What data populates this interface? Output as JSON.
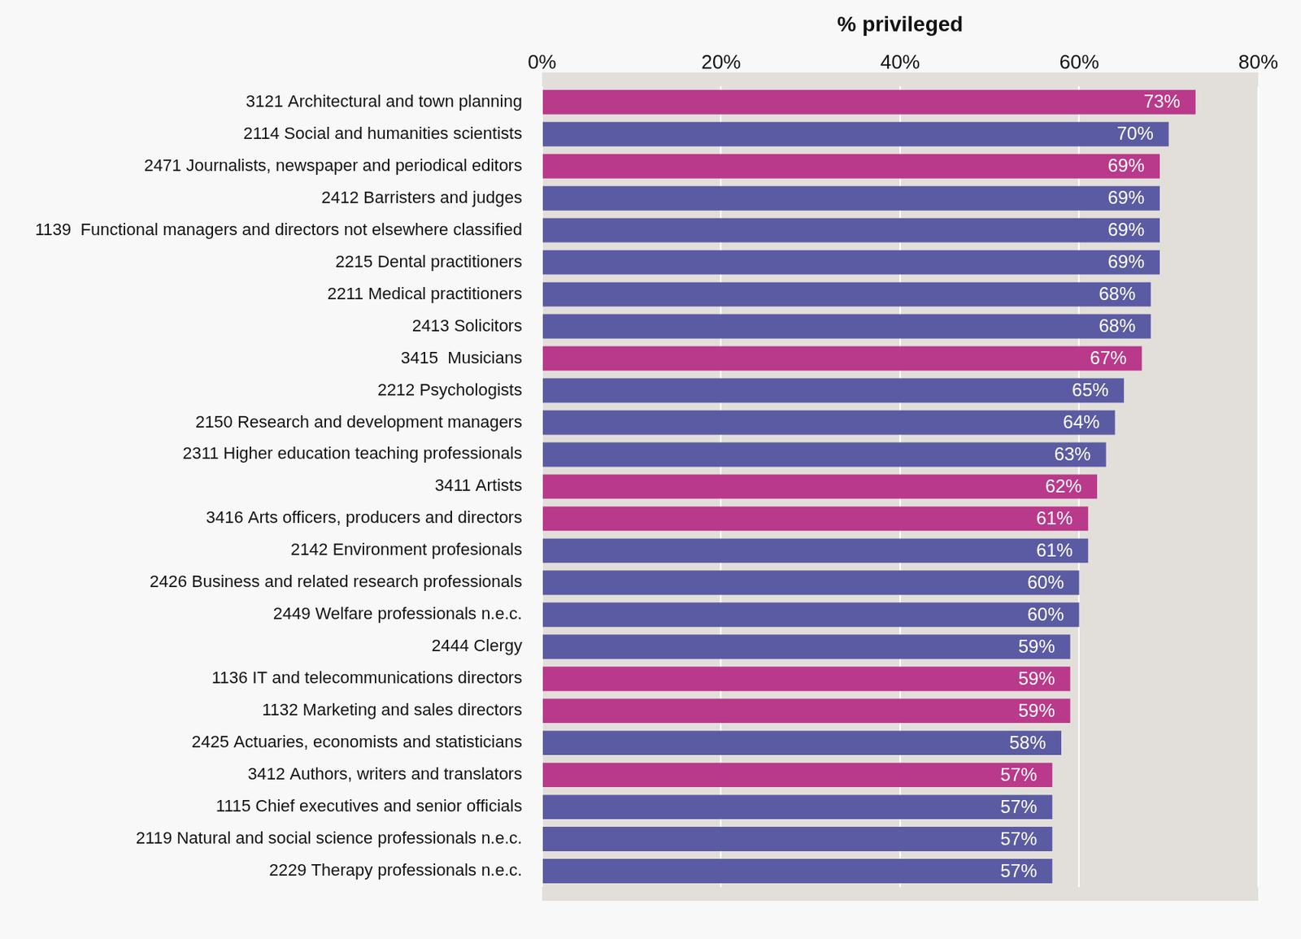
{
  "chart_data": {
    "type": "bar",
    "orientation": "horizontal",
    "x_label": "% privileged",
    "categories": [
      "3121 Architectural and town planning",
      "2114 Social and humanities scientists",
      "2471 Journalists, newspaper and periodical editors",
      "2412 Barristers and judges",
      "1139  Functional managers and directors not elsewhere classified",
      "2215 Dental practitioners",
      "2211 Medical practitioners",
      "2413 Solicitors",
      "3415  Musicians",
      "2212 Psychologists",
      "2150 Research and development managers",
      "2311 Higher education teaching professionals",
      "3411 Artists",
      "3416 Arts officers, producers and directors",
      "2142 Environment profesionals",
      "2426 Business and related research professionals",
      "2449 Welfare professionals n.e.c.",
      "2444 Clergy",
      "1136 IT and telecommunications directors",
      "1132 Marketing and sales directors",
      "2425 Actuaries, economists and statisticians",
      "3412 Authors, writers and translators",
      "1115 Chief executives and senior officials",
      "2119 Natural and social science professionals n.e.c.",
      "2229 Therapy professionals n.e.c."
    ],
    "values": [
      73,
      70,
      69,
      69,
      69,
      69,
      68,
      68,
      67,
      65,
      64,
      63,
      62,
      61,
      61,
      60,
      60,
      59,
      59,
      59,
      58,
      57,
      57,
      57,
      57
    ],
    "value_labels": [
      "73%",
      "70%",
      "69%",
      "69%",
      "69%",
      "69%",
      "68%",
      "68%",
      "67%",
      "65%",
      "64%",
      "63%",
      "62%",
      "61%",
      "61%",
      "60%",
      "60%",
      "59%",
      "59%",
      "59%",
      "58%",
      "57%",
      "57%",
      "57%",
      "57%"
    ],
    "colors": [
      "#b9398a",
      "#5b5ba3",
      "#b9398a",
      "#5b5ba3",
      "#5b5ba3",
      "#5b5ba3",
      "#5b5ba3",
      "#5b5ba3",
      "#b9398a",
      "#5b5ba3",
      "#5b5ba3",
      "#5b5ba3",
      "#b9398a",
      "#b9398a",
      "#5b5ba3",
      "#5b5ba3",
      "#5b5ba3",
      "#5b5ba3",
      "#b9398a",
      "#b9398a",
      "#5b5ba3",
      "#b9398a",
      "#5b5ba3",
      "#5b5ba3",
      "#5b5ba3"
    ],
    "xlim": [
      0,
      80
    ],
    "xticks": [
      {
        "value": 0,
        "label": "0%"
      },
      {
        "value": 20,
        "label": "20%"
      },
      {
        "value": 40,
        "label": "40%"
      },
      {
        "value": 60,
        "label": "60%"
      },
      {
        "value": 80,
        "label": "80%"
      }
    ],
    "grid": true,
    "data_labels": true
  }
}
